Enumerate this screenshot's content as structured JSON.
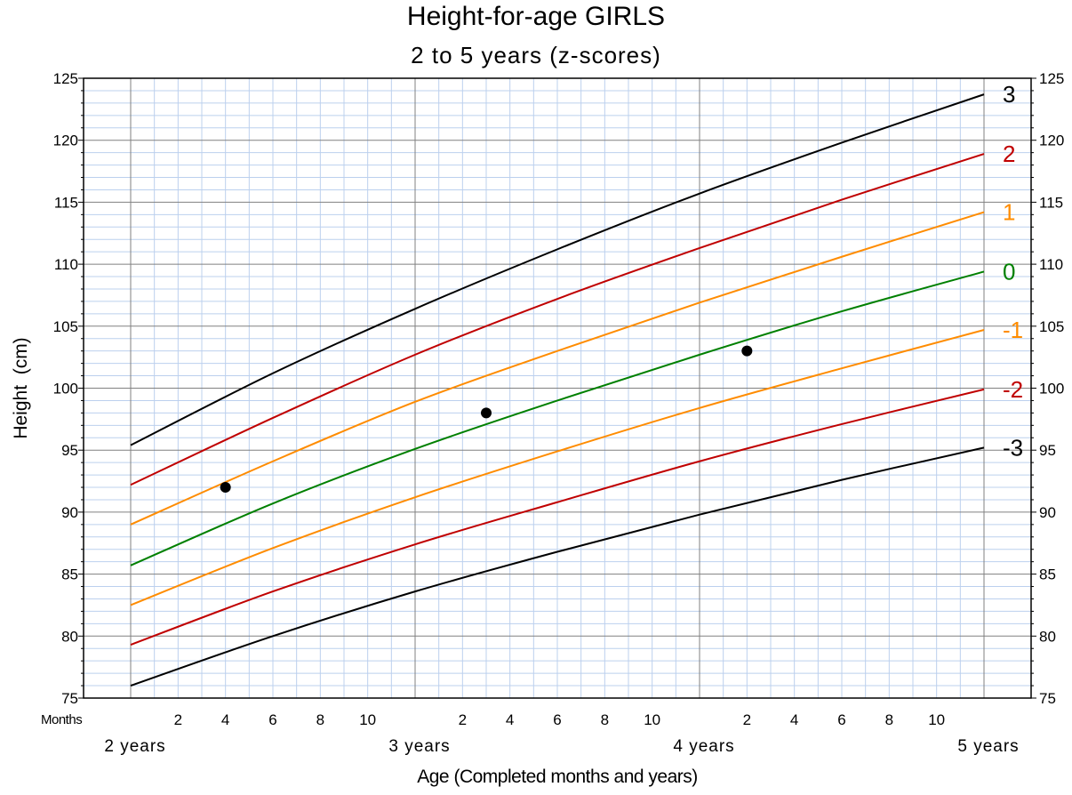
{
  "chart_data": {
    "type": "line",
    "title": "Height-for-age GIRLS",
    "subtitle": "2 to 5 years (z-scores)",
    "xlabel": "Age (Completed months and years)",
    "ylabel": "Height  (cm)",
    "x_unit": "months",
    "xlim": [
      24,
      60
    ],
    "ylim": [
      75,
      125
    ],
    "y_ticks": [
      75,
      80,
      85,
      90,
      95,
      100,
      105,
      110,
      115,
      120,
      125
    ],
    "months_label": "Months",
    "month_ticks": [
      {
        "x": 26,
        "label": "2"
      },
      {
        "x": 28,
        "label": "4"
      },
      {
        "x": 30,
        "label": "6"
      },
      {
        "x": 32,
        "label": "8"
      },
      {
        "x": 34,
        "label": "10"
      },
      {
        "x": 38,
        "label": "2"
      },
      {
        "x": 40,
        "label": "4"
      },
      {
        "x": 42,
        "label": "6"
      },
      {
        "x": 44,
        "label": "8"
      },
      {
        "x": 46,
        "label": "10"
      },
      {
        "x": 50,
        "label": "2"
      },
      {
        "x": 52,
        "label": "4"
      },
      {
        "x": 54,
        "label": "6"
      },
      {
        "x": 56,
        "label": "8"
      },
      {
        "x": 58,
        "label": "10"
      }
    ],
    "year_ticks": [
      {
        "x": 24,
        "label": "2 years"
      },
      {
        "x": 36,
        "label": "3 years"
      },
      {
        "x": 48,
        "label": "4 years"
      },
      {
        "x": 60,
        "label": "5 years"
      }
    ],
    "grid": true,
    "series": [
      {
        "name": "3",
        "color": "#000000",
        "x": [
          24,
          30,
          36,
          42,
          48,
          54,
          60
        ],
        "values": [
          95.4,
          101.2,
          106.4,
          111.2,
          115.7,
          119.8,
          123.7
        ]
      },
      {
        "name": "2",
        "color": "#c00000",
        "x": [
          24,
          30,
          36,
          42,
          48,
          54,
          60
        ],
        "values": [
          92.2,
          97.6,
          102.7,
          107.2,
          111.3,
          115.2,
          118.9
        ]
      },
      {
        "name": "1",
        "color": "#ff8c00",
        "x": [
          24,
          30,
          36,
          42,
          48,
          54,
          60
        ],
        "values": [
          89.0,
          94.1,
          98.9,
          103.0,
          106.9,
          110.6,
          114.2
        ]
      },
      {
        "name": "0",
        "color": "#008000",
        "x": [
          24,
          30,
          36,
          42,
          48,
          54,
          60
        ],
        "values": [
          85.7,
          90.7,
          95.1,
          99.0,
          102.7,
          106.2,
          109.4
        ]
      },
      {
        "name": "-1",
        "color": "#ff8c00",
        "x": [
          24,
          30,
          36,
          42,
          48,
          54,
          60
        ],
        "values": [
          82.5,
          87.1,
          91.2,
          94.9,
          98.4,
          101.6,
          104.7
        ]
      },
      {
        "name": "-2",
        "color": "#c00000",
        "x": [
          24,
          30,
          36,
          42,
          48,
          54,
          60
        ],
        "values": [
          79.3,
          83.6,
          87.4,
          90.8,
          94.1,
          97.1,
          99.9
        ]
      },
      {
        "name": "-3",
        "color": "#000000",
        "x": [
          24,
          30,
          36,
          42,
          48,
          54,
          60
        ],
        "values": [
          76.0,
          80.0,
          83.6,
          86.8,
          89.8,
          92.6,
          95.2
        ]
      }
    ],
    "points": [
      {
        "x": 28,
        "y": 92.0
      },
      {
        "x": 39,
        "y": 98.0
      },
      {
        "x": 50,
        "y": 103.0
      }
    ]
  }
}
